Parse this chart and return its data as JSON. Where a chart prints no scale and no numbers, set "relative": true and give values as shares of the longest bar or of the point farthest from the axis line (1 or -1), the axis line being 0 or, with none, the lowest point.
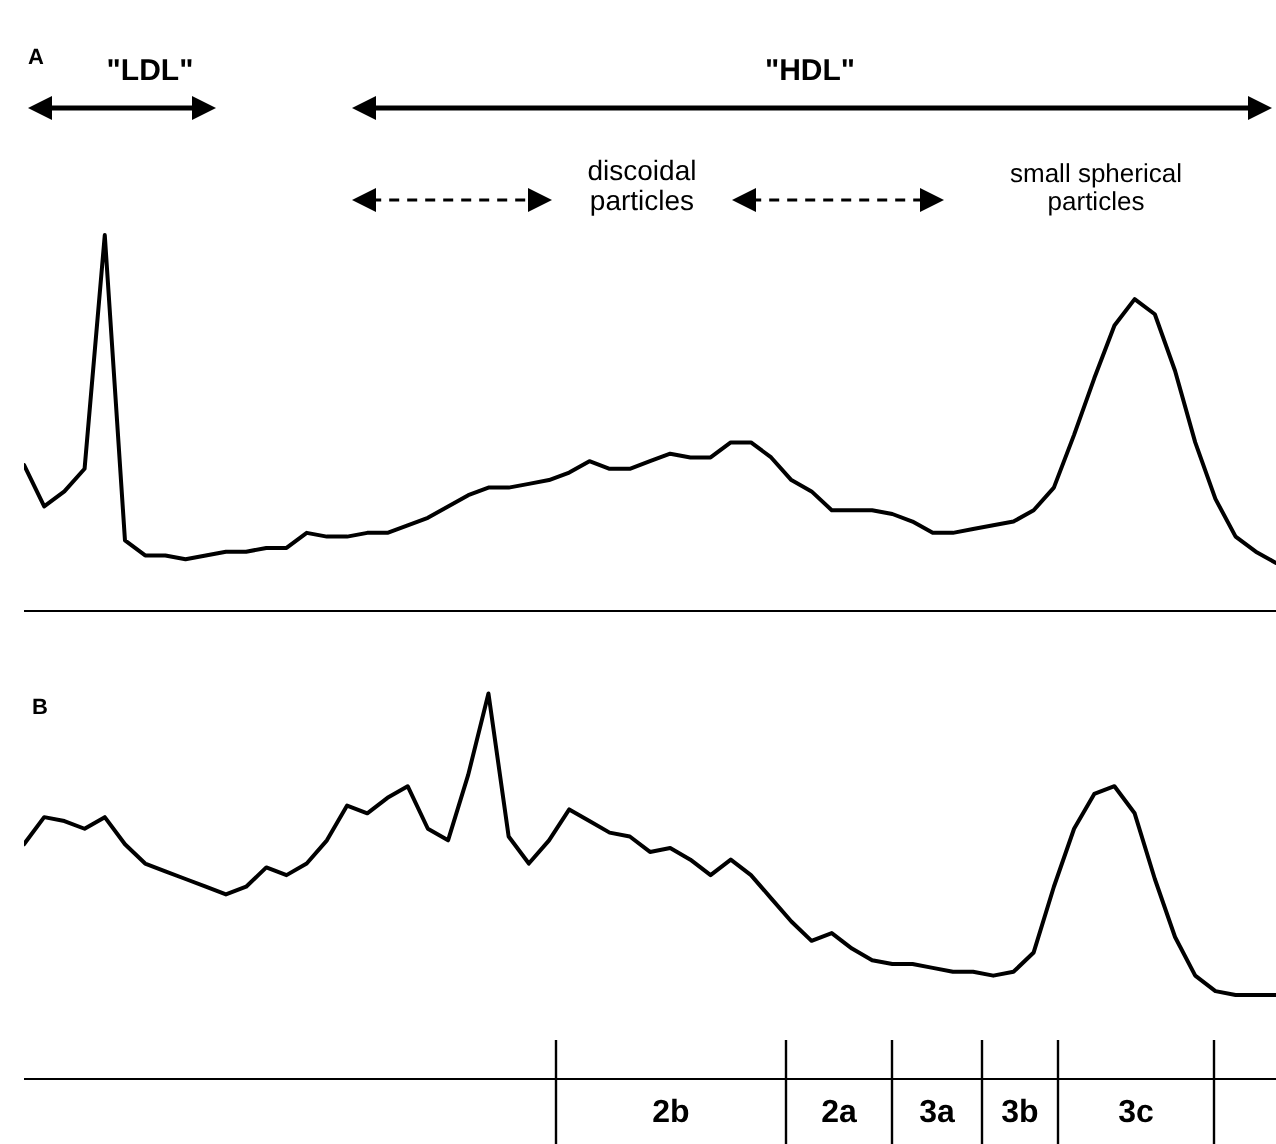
{
  "chart_data": [
    {
      "type": "line",
      "title": "A",
      "relative": true,
      "color": "#000000",
      "grid": false,
      "legend": false,
      "marker": "none",
      "annotations": [
        "\"LDL\"",
        "\"HDL\"",
        "discoidal particles",
        "small spherical particles"
      ],
      "categories": [
        null,
        null,
        null,
        null,
        null,
        null,
        null,
        null,
        null,
        null,
        null,
        null,
        null,
        null,
        null,
        null,
        null,
        null,
        null,
        null,
        null,
        null,
        null,
        null,
        null,
        null,
        null,
        null,
        null,
        null,
        null,
        null,
        null,
        null,
        null,
        null,
        null,
        null,
        null,
        null,
        null,
        null,
        null,
        null,
        null,
        null,
        null,
        null,
        null,
        null,
        null,
        null,
        null,
        null,
        null,
        null,
        null,
        null,
        null,
        null,
        null,
        null,
        null
      ],
      "values": [
        0.39,
        0.28,
        0.32,
        0.38,
        1,
        0.19,
        0.15,
        0.15,
        0.14,
        0.15,
        0.16,
        0.16,
        0.17,
        0.17,
        0.21,
        0.2,
        0.2,
        0.21,
        0.21,
        0.23,
        0.25,
        0.28,
        0.31,
        0.33,
        0.33,
        0.34,
        0.35,
        0.37,
        0.4,
        0.38,
        0.38,
        0.4,
        0.42,
        0.41,
        0.41,
        0.45,
        0.45,
        0.41,
        0.35,
        0.32,
        0.27,
        0.27,
        0.27,
        0.26,
        0.24,
        0.21,
        0.21,
        0.22,
        0.23,
        0.24,
        0.27,
        0.33,
        0.47,
        0.62,
        0.76,
        0.83,
        0.79,
        0.64,
        0.45,
        0.3,
        0.2,
        0.16,
        0.13
      ]
    },
    {
      "type": "line",
      "title": "B",
      "relative": true,
      "color": "#000000",
      "grid": false,
      "legend": false,
      "marker": "none",
      "annotations": [
        "2b",
        "2a",
        "3a",
        "3b",
        "3c"
      ],
      "categories": [
        null,
        null,
        null,
        null,
        null,
        null,
        null,
        null,
        null,
        null,
        null,
        null,
        null,
        null,
        null,
        null,
        null,
        null,
        null,
        null,
        null,
        null,
        null,
        null,
        null,
        null,
        null,
        null,
        null,
        null,
        null,
        null,
        null,
        null,
        null,
        null,
        null,
        null,
        null,
        null,
        null,
        null,
        null,
        null,
        null,
        null,
        null,
        null,
        null,
        null,
        null,
        null,
        null,
        null,
        null,
        null,
        null,
        null,
        null,
        null,
        null,
        null,
        null
      ],
      "values": [
        0.61,
        0.68,
        0.67,
        0.65,
        0.68,
        0.61,
        0.56,
        0.54,
        0.52,
        0.5,
        0.48,
        0.5,
        0.55,
        0.53,
        0.56,
        0.62,
        0.71,
        0.69,
        0.73,
        0.76,
        0.65,
        0.62,
        0.79,
        1,
        0.63,
        0.56,
        0.62,
        0.7,
        0.67,
        0.64,
        0.63,
        0.59,
        0.6,
        0.57,
        0.53,
        0.57,
        0.53,
        0.47,
        0.41,
        0.36,
        0.38,
        0.34,
        0.31,
        0.3,
        0.3,
        0.29,
        0.28,
        0.28,
        0.27,
        0.28,
        0.33,
        0.5,
        0.65,
        0.74,
        0.76,
        0.69,
        0.52,
        0.37,
        0.27,
        0.23,
        0.22,
        0.22,
        0.22
      ]
    }
  ]
}
